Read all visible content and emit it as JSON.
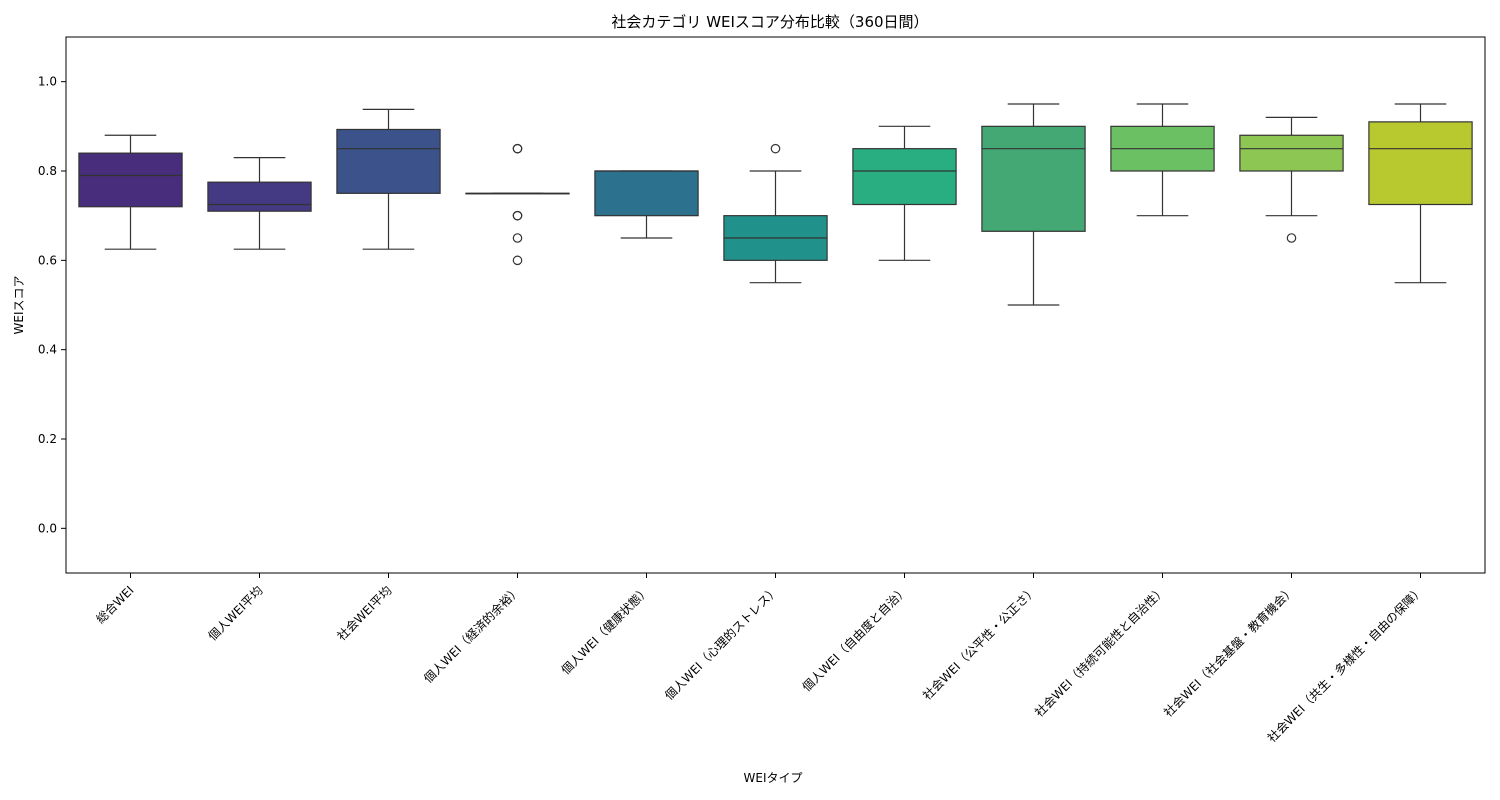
{
  "chart_data": {
    "type": "box",
    "title": "社会カテゴリ WEIスコア分布比較（360日間）",
    "xlabel": "WEIタイプ",
    "ylabel": "WEIスコア",
    "ylim": [
      -0.1,
      1.1
    ],
    "yticks": [
      0.0,
      0.2,
      0.4,
      0.6,
      0.8,
      1.0
    ],
    "ytick_labels": [
      "0.0",
      "0.2",
      "0.4",
      "0.6",
      "0.8",
      "1.0"
    ],
    "grid": false,
    "categories": [
      "総合WEI",
      "個人WEI平均",
      "社会WEI平均",
      "個人WEI（経済的余裕）",
      "個人WEI（健康状態）",
      "個人WEI（心理的ストレス）",
      "個人WEI（自由度と自治）",
      "社会WEI（公平性・公正さ）",
      "社会WEI（持続可能性と自治性）",
      "社会WEI（社会基盤・教育機会）",
      "社会WEI（共生・多様性・自由の保障）"
    ],
    "boxes": [
      {
        "whisker_low": 0.625,
        "q1": 0.72,
        "median": 0.79,
        "q3": 0.84,
        "whisker_high": 0.88,
        "outliers": [],
        "color": "#472d7b"
      },
      {
        "whisker_low": 0.625,
        "q1": 0.71,
        "median": 0.725,
        "q3": 0.775,
        "whisker_high": 0.83,
        "outliers": [],
        "color": "#443a83"
      },
      {
        "whisker_low": 0.625,
        "q1": 0.75,
        "median": 0.85,
        "q3": 0.893,
        "whisker_high": 0.938,
        "outliers": [],
        "color": "#3b528b"
      },
      {
        "whisker_low": 0.75,
        "q1": 0.75,
        "median": 0.75,
        "q3": 0.75,
        "whisker_high": 0.75,
        "outliers": [
          0.85,
          0.85,
          0.7,
          0.7,
          0.65,
          0.6
        ],
        "color": "#31688e"
      },
      {
        "whisker_low": 0.65,
        "q1": 0.7,
        "median": 0.8,
        "q3": 0.8,
        "whisker_high": 0.8,
        "outliers": [],
        "color": "#2c728e"
      },
      {
        "whisker_low": 0.55,
        "q1": 0.6,
        "median": 0.65,
        "q3": 0.7,
        "whisker_high": 0.8,
        "outliers": [
          0.85
        ],
        "color": "#21918c"
      },
      {
        "whisker_low": 0.6,
        "q1": 0.725,
        "median": 0.8,
        "q3": 0.85,
        "whisker_high": 0.9,
        "outliers": [],
        "color": "#28ae80"
      },
      {
        "whisker_low": 0.5,
        "q1": 0.665,
        "median": 0.85,
        "q3": 0.9,
        "whisker_high": 0.95,
        "outliers": [],
        "color": "#44a874"
      },
      {
        "whisker_low": 0.7,
        "q1": 0.8,
        "median": 0.85,
        "q3": 0.9,
        "whisker_high": 0.95,
        "outliers": [],
        "color": "#6cc064"
      },
      {
        "whisker_low": 0.7,
        "q1": 0.8,
        "median": 0.85,
        "q3": 0.88,
        "whisker_high": 0.92,
        "outliers": [
          0.65
        ],
        "color": "#8ec653"
      },
      {
        "whisker_low": 0.55,
        "q1": 0.725,
        "median": 0.85,
        "q3": 0.91,
        "whisker_high": 0.95,
        "outliers": [],
        "color": "#b8c930"
      }
    ]
  }
}
